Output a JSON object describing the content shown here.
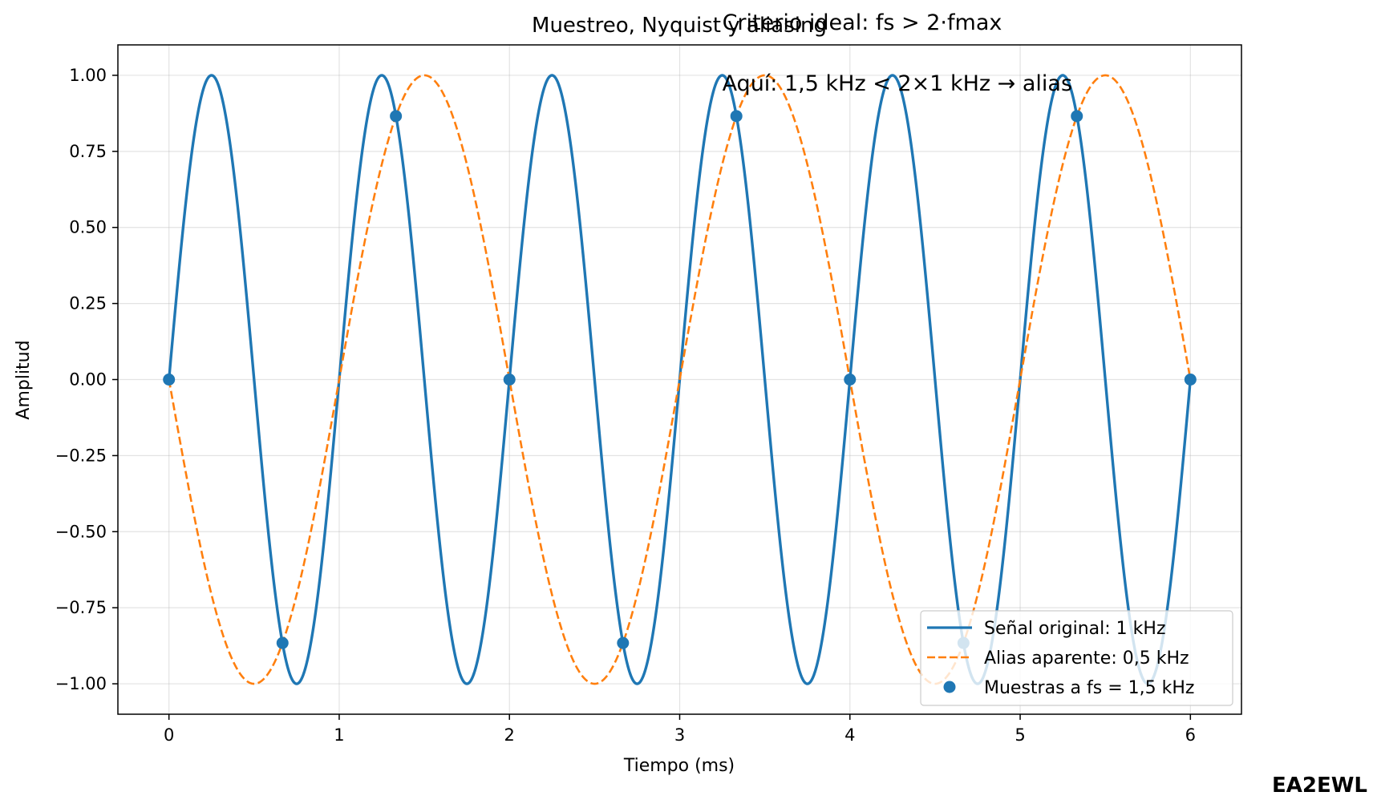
{
  "chart_data": {
    "type": "line",
    "title": "Muestreo, Nyquist y aliasing",
    "xlabel": "Tiempo (ms)",
    "ylabel": "Amplitud",
    "xlim": [
      -0.3,
      6.3
    ],
    "ylim": [
      -1.1,
      1.1
    ],
    "x_ticks": [
      0,
      1,
      2,
      3,
      4,
      5,
      6
    ],
    "x_tick_labels": [
      "0",
      "1",
      "2",
      "3",
      "4",
      "5",
      "6"
    ],
    "y_ticks": [
      1.0,
      0.75,
      0.5,
      0.25,
      0.0,
      -0.25,
      -0.5,
      -0.75,
      -1.0
    ],
    "y_tick_labels": [
      "1.00",
      "0.75",
      "0.50",
      "0.25",
      "0.00",
      "−0.25",
      "−0.50",
      "−0.75",
      "−1.00"
    ],
    "grid": true,
    "legend_position": "lower-right",
    "series": [
      {
        "name": "Señal original: 1 kHz",
        "kind": "line",
        "style": "solid",
        "color": "#1f77b4",
        "function": "sin(2π·1·t)",
        "frequency_khz": 1,
        "amplitude": 1,
        "x_range": [
          0,
          6
        ]
      },
      {
        "name": "Alias aparente: 0,5 kHz",
        "kind": "line",
        "style": "dashed",
        "color": "#ff7f0e",
        "function": "−sin(2π·0.5·t)",
        "frequency_khz": 0.5,
        "amplitude": -1,
        "x_range": [
          0,
          6
        ]
      },
      {
        "name": "Muestras a fs = 1,5 kHz",
        "kind": "scatter",
        "color": "#1f77b4",
        "x": [
          0,
          0.667,
          1.333,
          2.0,
          2.667,
          3.333,
          4.0,
          4.667,
          5.333,
          6.0
        ],
        "y": [
          0,
          -0.866,
          0.866,
          0,
          -0.866,
          0.866,
          0,
          -0.866,
          0.866,
          0
        ]
      }
    ],
    "annotations": [
      {
        "text": "Criterio ideal: fs > 2·fmax",
        "x": 3.25,
        "y": 1.15
      },
      {
        "text": "Aquí: 1,5 kHz < 2×1 kHz → alias",
        "x": 3.25,
        "y": 0.95
      }
    ]
  },
  "watermark": "EA2EWL"
}
